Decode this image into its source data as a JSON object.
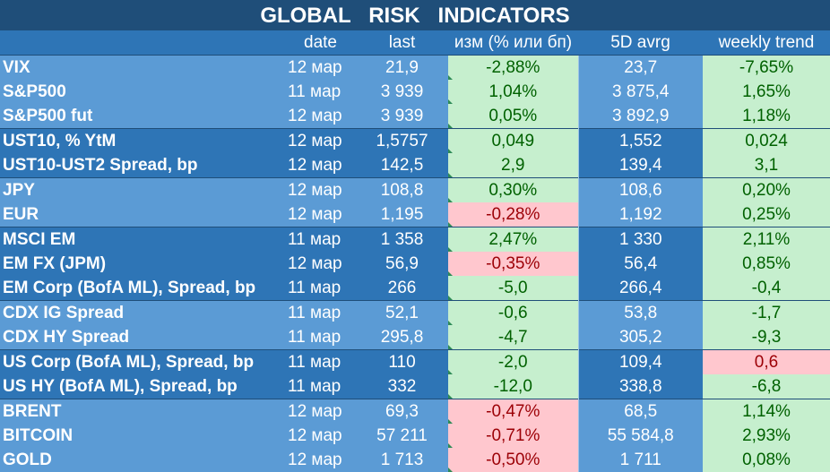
{
  "title": "GLOBAL   RISK   INDICATORS",
  "headers": {
    "name": "",
    "date": "date",
    "last": "last",
    "change": "изм (% или бп)",
    "avg": "5D avrg",
    "weekly": "weekly trend"
  },
  "rows": [
    {
      "name": "VIX",
      "date": "12 мар",
      "last": "21,9",
      "change": "-2,88%",
      "avg": "23,7",
      "weekly": "-7,65%",
      "change_color": "green",
      "weekly_color": "green",
      "shade": "light",
      "group_start": true
    },
    {
      "name": "S&P500",
      "date": "11 мар",
      "last": "3 939",
      "change": "1,04%",
      "avg": "3 875,4",
      "weekly": "1,65%",
      "change_color": "green",
      "weekly_color": "green",
      "shade": "light",
      "group_start": false
    },
    {
      "name": "S&P500 fut",
      "date": "12 мар",
      "last": "3 939",
      "change": "0,05%",
      "avg": "3 892,9",
      "weekly": "1,18%",
      "change_color": "green",
      "weekly_color": "green",
      "shade": "light",
      "group_start": false
    },
    {
      "name": "UST10, % YtM",
      "date": "12 мар",
      "last": "1,5757",
      "change": "0,049",
      "avg": "1,552",
      "weekly": "0,024",
      "change_color": "green",
      "weekly_color": "green",
      "shade": "dark",
      "group_start": true
    },
    {
      "name": "UST10-UST2 Spread, bp",
      "date": "12 мар",
      "last": "142,5",
      "change": "2,9",
      "avg": "139,4",
      "weekly": "3,1",
      "change_color": "green",
      "weekly_color": "green",
      "shade": "dark",
      "group_start": false
    },
    {
      "name": "JPY",
      "date": "12 мар",
      "last": "108,8",
      "change": "0,30%",
      "avg": "108,6",
      "weekly": "0,20%",
      "change_color": "green",
      "weekly_color": "green",
      "shade": "light",
      "group_start": true
    },
    {
      "name": "EUR",
      "date": "12 мар",
      "last": "1,195",
      "change": "-0,28%",
      "avg": "1,192",
      "weekly": "0,25%",
      "change_color": "red",
      "weekly_color": "green",
      "shade": "light",
      "group_start": false
    },
    {
      "name": "MSCI EM",
      "date": "11 мар",
      "last": "1 358",
      "change": "2,47%",
      "avg": "1 330",
      "weekly": "2,11%",
      "change_color": "green",
      "weekly_color": "green",
      "shade": "dark",
      "group_start": true
    },
    {
      "name": "EM FX (JPM)",
      "date": "12 мар",
      "last": "56,9",
      "change": "-0,35%",
      "avg": "56,4",
      "weekly": "0,85%",
      "change_color": "red",
      "weekly_color": "green",
      "shade": "dark",
      "group_start": false
    },
    {
      "name": "EM Corp (BofA ML), Spread, bp",
      "date": "11 мар",
      "last": "266",
      "change": "-5,0",
      "avg": "266,4",
      "weekly": "-0,4",
      "change_color": "green",
      "weekly_color": "green",
      "shade": "dark",
      "group_start": false
    },
    {
      "name": "CDX IG Spread",
      "date": "11 мар",
      "last": "52,1",
      "change": "-0,6",
      "avg": "53,8",
      "weekly": "-1,7",
      "change_color": "green",
      "weekly_color": "green",
      "shade": "light",
      "group_start": true
    },
    {
      "name": "CDX HY Spread",
      "date": "11 мар",
      "last": "295,8",
      "change": "-4,7",
      "avg": "305,2",
      "weekly": "-9,3",
      "change_color": "green",
      "weekly_color": "green",
      "shade": "light",
      "group_start": false
    },
    {
      "name": "US Corp (BofA ML), Spread, bp",
      "date": "11 мар",
      "last": "110",
      "change": "-2,0",
      "avg": "109,4",
      "weekly": "0,6",
      "change_color": "green",
      "weekly_color": "red",
      "shade": "dark",
      "group_start": true
    },
    {
      "name": "US HY (BofA ML), Spread, bp",
      "date": "11 мар",
      "last": "332",
      "change": "-12,0",
      "avg": "338,8",
      "weekly": "-6,8",
      "change_color": "green",
      "weekly_color": "green",
      "shade": "dark",
      "group_start": false
    },
    {
      "name": "BRENT",
      "date": "12 мар",
      "last": "69,3",
      "change": "-0,47%",
      "avg": "68,5",
      "weekly": "1,14%",
      "change_color": "red",
      "weekly_color": "green",
      "shade": "light",
      "group_start": true
    },
    {
      "name": "BITCOIN",
      "date": "12 мар",
      "last": "57 211",
      "change": "-0,71%",
      "avg": "55 584,8",
      "weekly": "2,93%",
      "change_color": "red",
      "weekly_color": "green",
      "shade": "light",
      "group_start": false
    },
    {
      "name": "GOLD",
      "date": "12 мар",
      "last": "1 713",
      "change": "-0,50%",
      "avg": "1 711",
      "weekly": "0,08%",
      "change_color": "red",
      "weekly_color": "green",
      "shade": "light",
      "group_start": false
    }
  ]
}
